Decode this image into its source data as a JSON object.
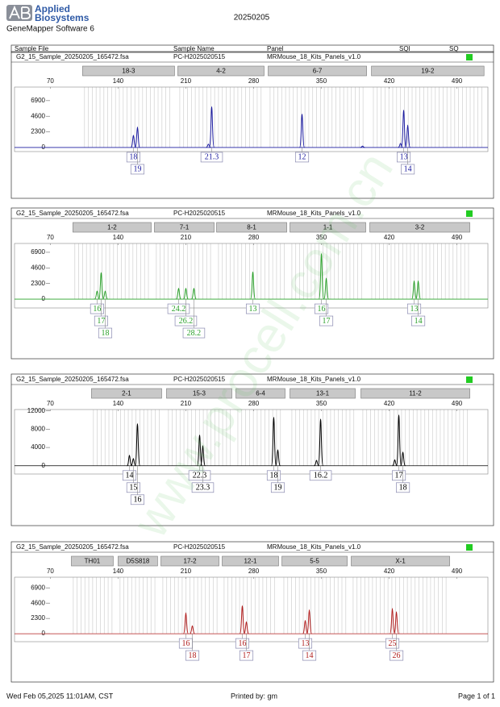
{
  "header": {
    "brand_line1": "Applied",
    "brand_line2": "Biosystems",
    "software": "GeneMapper Software 6",
    "date": "20250205"
  },
  "columns": [
    "Sample File",
    "Sample Name",
    "Panel",
    "SQI",
    "SQ"
  ],
  "chart_data": [
    {
      "type": "electropherogram",
      "sample_file": "G2_15_Sample_20250205_165472.fsa",
      "sample_name": "PC-H2025020515",
      "panel": "MRMouse_18_Kits_Panels_v1.0",
      "color": "#1c1ca0",
      "markers": [
        {
          "name": "18-3",
          "range": [
            103.3,
            198.3
          ]
        },
        {
          "name": "4-2",
          "range": [
            201.7,
            290.8
          ]
        },
        {
          "name": "6-7",
          "range": [
            295,
            396.7
          ]
        },
        {
          "name": "19-2",
          "range": [
            401.7,
            518
          ]
        }
      ],
      "x": [
        155.8,
        160,
        233.3,
        236.7,
        330,
        392.5,
        431.7,
        435,
        439.2
      ],
      "values": [
        1800,
        3000,
        500,
        6000,
        4900,
        200,
        600,
        5500,
        3300
      ],
      "labels": [
        "18",
        "19",
        null,
        "21.3",
        "12",
        null,
        null,
        "13",
        "14"
      ],
      "xlim": [
        33,
        522
      ],
      "xticks": [
        70,
        140,
        210,
        280,
        350,
        420,
        490
      ],
      "ylim": [
        -600,
        8900
      ],
      "yticks": [
        0,
        2300,
        4600,
        6900
      ]
    },
    {
      "type": "electropherogram",
      "sample_file": "G2_15_Sample_20250205_165472.fsa",
      "sample_name": "PC-H2025020515",
      "panel": "MRMouse_18_Kits_Panels_v1.0",
      "color": "#2aa02a",
      "markers": [
        {
          "name": "1-2",
          "range": [
            93.3,
            174.2
          ]
        },
        {
          "name": "7-1",
          "range": [
            177.5,
            239.2
          ]
        },
        {
          "name": "8-1",
          "range": [
            241.7,
            314.2
          ]
        },
        {
          "name": "1-1",
          "range": [
            317.5,
            395.8
          ]
        },
        {
          "name": "3-2",
          "range": [
            400,
            503.3
          ]
        }
      ],
      "x": [
        118.3,
        122.5,
        126.7,
        202.5,
        210,
        218.3,
        279.2,
        350,
        355,
        445.8,
        450
      ],
      "values": [
        1200,
        3900,
        1200,
        1600,
        1600,
        1600,
        4000,
        6700,
        3100,
        2700,
        2700
      ],
      "labels": [
        "16",
        "17",
        "18",
        "24.2",
        "26.2",
        "28.2",
        "13",
        "16",
        "17",
        "13",
        "14"
      ],
      "xlim": [
        33,
        522
      ],
      "xticks": [
        70,
        140,
        210,
        280,
        350,
        420,
        490
      ],
      "ylim": [
        -1300,
        8200
      ],
      "yticks": [
        0,
        2300,
        4600,
        6900
      ]
    },
    {
      "type": "electropherogram",
      "sample_file": "G2_15_Sample_20250205_165472.fsa",
      "sample_name": "PC-H2025020515",
      "panel": "MRMouse_18_Kits_Panels_v1.0",
      "color": "#000000",
      "markers": [
        {
          "name": "2-1",
          "range": [
            112.5,
            185
          ]
        },
        {
          "name": "15-3",
          "range": [
            190,
            257.5
          ]
        },
        {
          "name": "6-4",
          "range": [
            261.7,
            312.5
          ]
        },
        {
          "name": "13-1",
          "range": [
            317.5,
            385
          ]
        },
        {
          "name": "11-2",
          "range": [
            390.8,
            503.3
          ]
        }
      ],
      "x": [
        151.7,
        155.8,
        160,
        224.2,
        227.5,
        300.8,
        305,
        345,
        349.2,
        425.8,
        430,
        434.2
      ],
      "values": [
        2300,
        1600,
        9200,
        6700,
        4400,
        10600,
        3500,
        1200,
        10200,
        1300,
        11100,
        3000
      ],
      "labels": [
        "14",
        "15",
        "16",
        "22.3",
        "23.3",
        "18",
        "19",
        null,
        "16.2",
        null,
        "17",
        "18"
      ],
      "xlim": [
        33,
        522
      ],
      "xticks": [
        70,
        140,
        210,
        280,
        350,
        420,
        490
      ],
      "ylim": [
        -1800,
        12300
      ],
      "yticks": [
        0,
        4000,
        8000,
        12000
      ]
    },
    {
      "type": "electropherogram",
      "sample_file": "G2_15_Sample_20250205_165472.fsa",
      "sample_name": "PC-H2025020515",
      "panel": "MRMouse_18_Kits_Panels_v1.0",
      "color": "#b01c1c",
      "markers": [
        {
          "name": "TH01",
          "range": [
            91.7,
            135
          ]
        },
        {
          "name": "D5S818",
          "range": [
            140,
            180.8
          ]
        },
        {
          "name": "17-2",
          "range": [
            184.2,
            244.2
          ]
        },
        {
          "name": "12-1",
          "range": [
            247.5,
            305.8
          ]
        },
        {
          "name": "5-5",
          "range": [
            309.2,
            376.7
          ]
        },
        {
          "name": "X-1",
          "range": [
            380.8,
            482.5
          ]
        }
      ],
      "x": [
        210,
        216.7,
        268.3,
        272.5,
        333.3,
        337.5,
        423.3,
        427.5
      ],
      "values": [
        3150,
        1200,
        4200,
        1800,
        2000,
        3600,
        3800,
        3300
      ],
      "labels": [
        "16",
        "18",
        "16",
        "17",
        "13",
        "14",
        "25",
        "26"
      ],
      "xlim": [
        33,
        522
      ],
      "xticks": [
        70,
        140,
        210,
        280,
        350,
        420,
        490
      ],
      "ylim": [
        -1200,
        8500
      ],
      "yticks": [
        0,
        2300,
        4600,
        6900
      ]
    }
  ],
  "footer": {
    "printed_on": "Wed Feb 05,2025 11:01AM, CST",
    "printed_by": "Printed by: gm",
    "page": "Page 1 of 1"
  },
  "watermark": "www.procell.com.cn"
}
